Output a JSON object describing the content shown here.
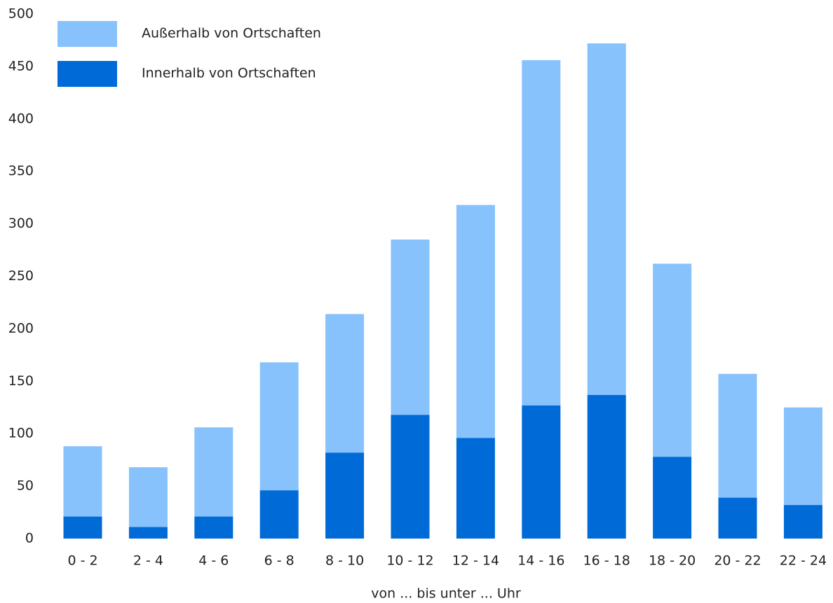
{
  "chart_data": {
    "type": "stacked_bar",
    "xlabel": "von ... bis unter ... Uhr",
    "categories": [
      "0 - 2",
      "2 - 4",
      "4 - 6",
      "6 - 8",
      "8 - 10",
      "10 - 12",
      "12 - 14",
      "14 - 16",
      "16 - 18",
      "18 - 20",
      "20 - 22",
      "22 - 24"
    ],
    "series": [
      {
        "name": "Innerhalb von Ortschaften",
        "color": "#006bd6",
        "values": [
          21,
          11,
          21,
          46,
          82,
          118,
          96,
          127,
          137,
          78,
          39,
          32
        ]
      },
      {
        "name": "Außerhalb von Ortschaften",
        "color": "#87c2fc",
        "values": [
          67,
          57,
          85,
          122,
          132,
          167,
          222,
          329,
          335,
          184,
          118,
          93
        ]
      }
    ],
    "ylim": [
      0,
      500
    ],
    "yticks": [
      0,
      50,
      100,
      150,
      200,
      250,
      300,
      350,
      400,
      450,
      500
    ],
    "grid": false,
    "legend": "upper left"
  }
}
